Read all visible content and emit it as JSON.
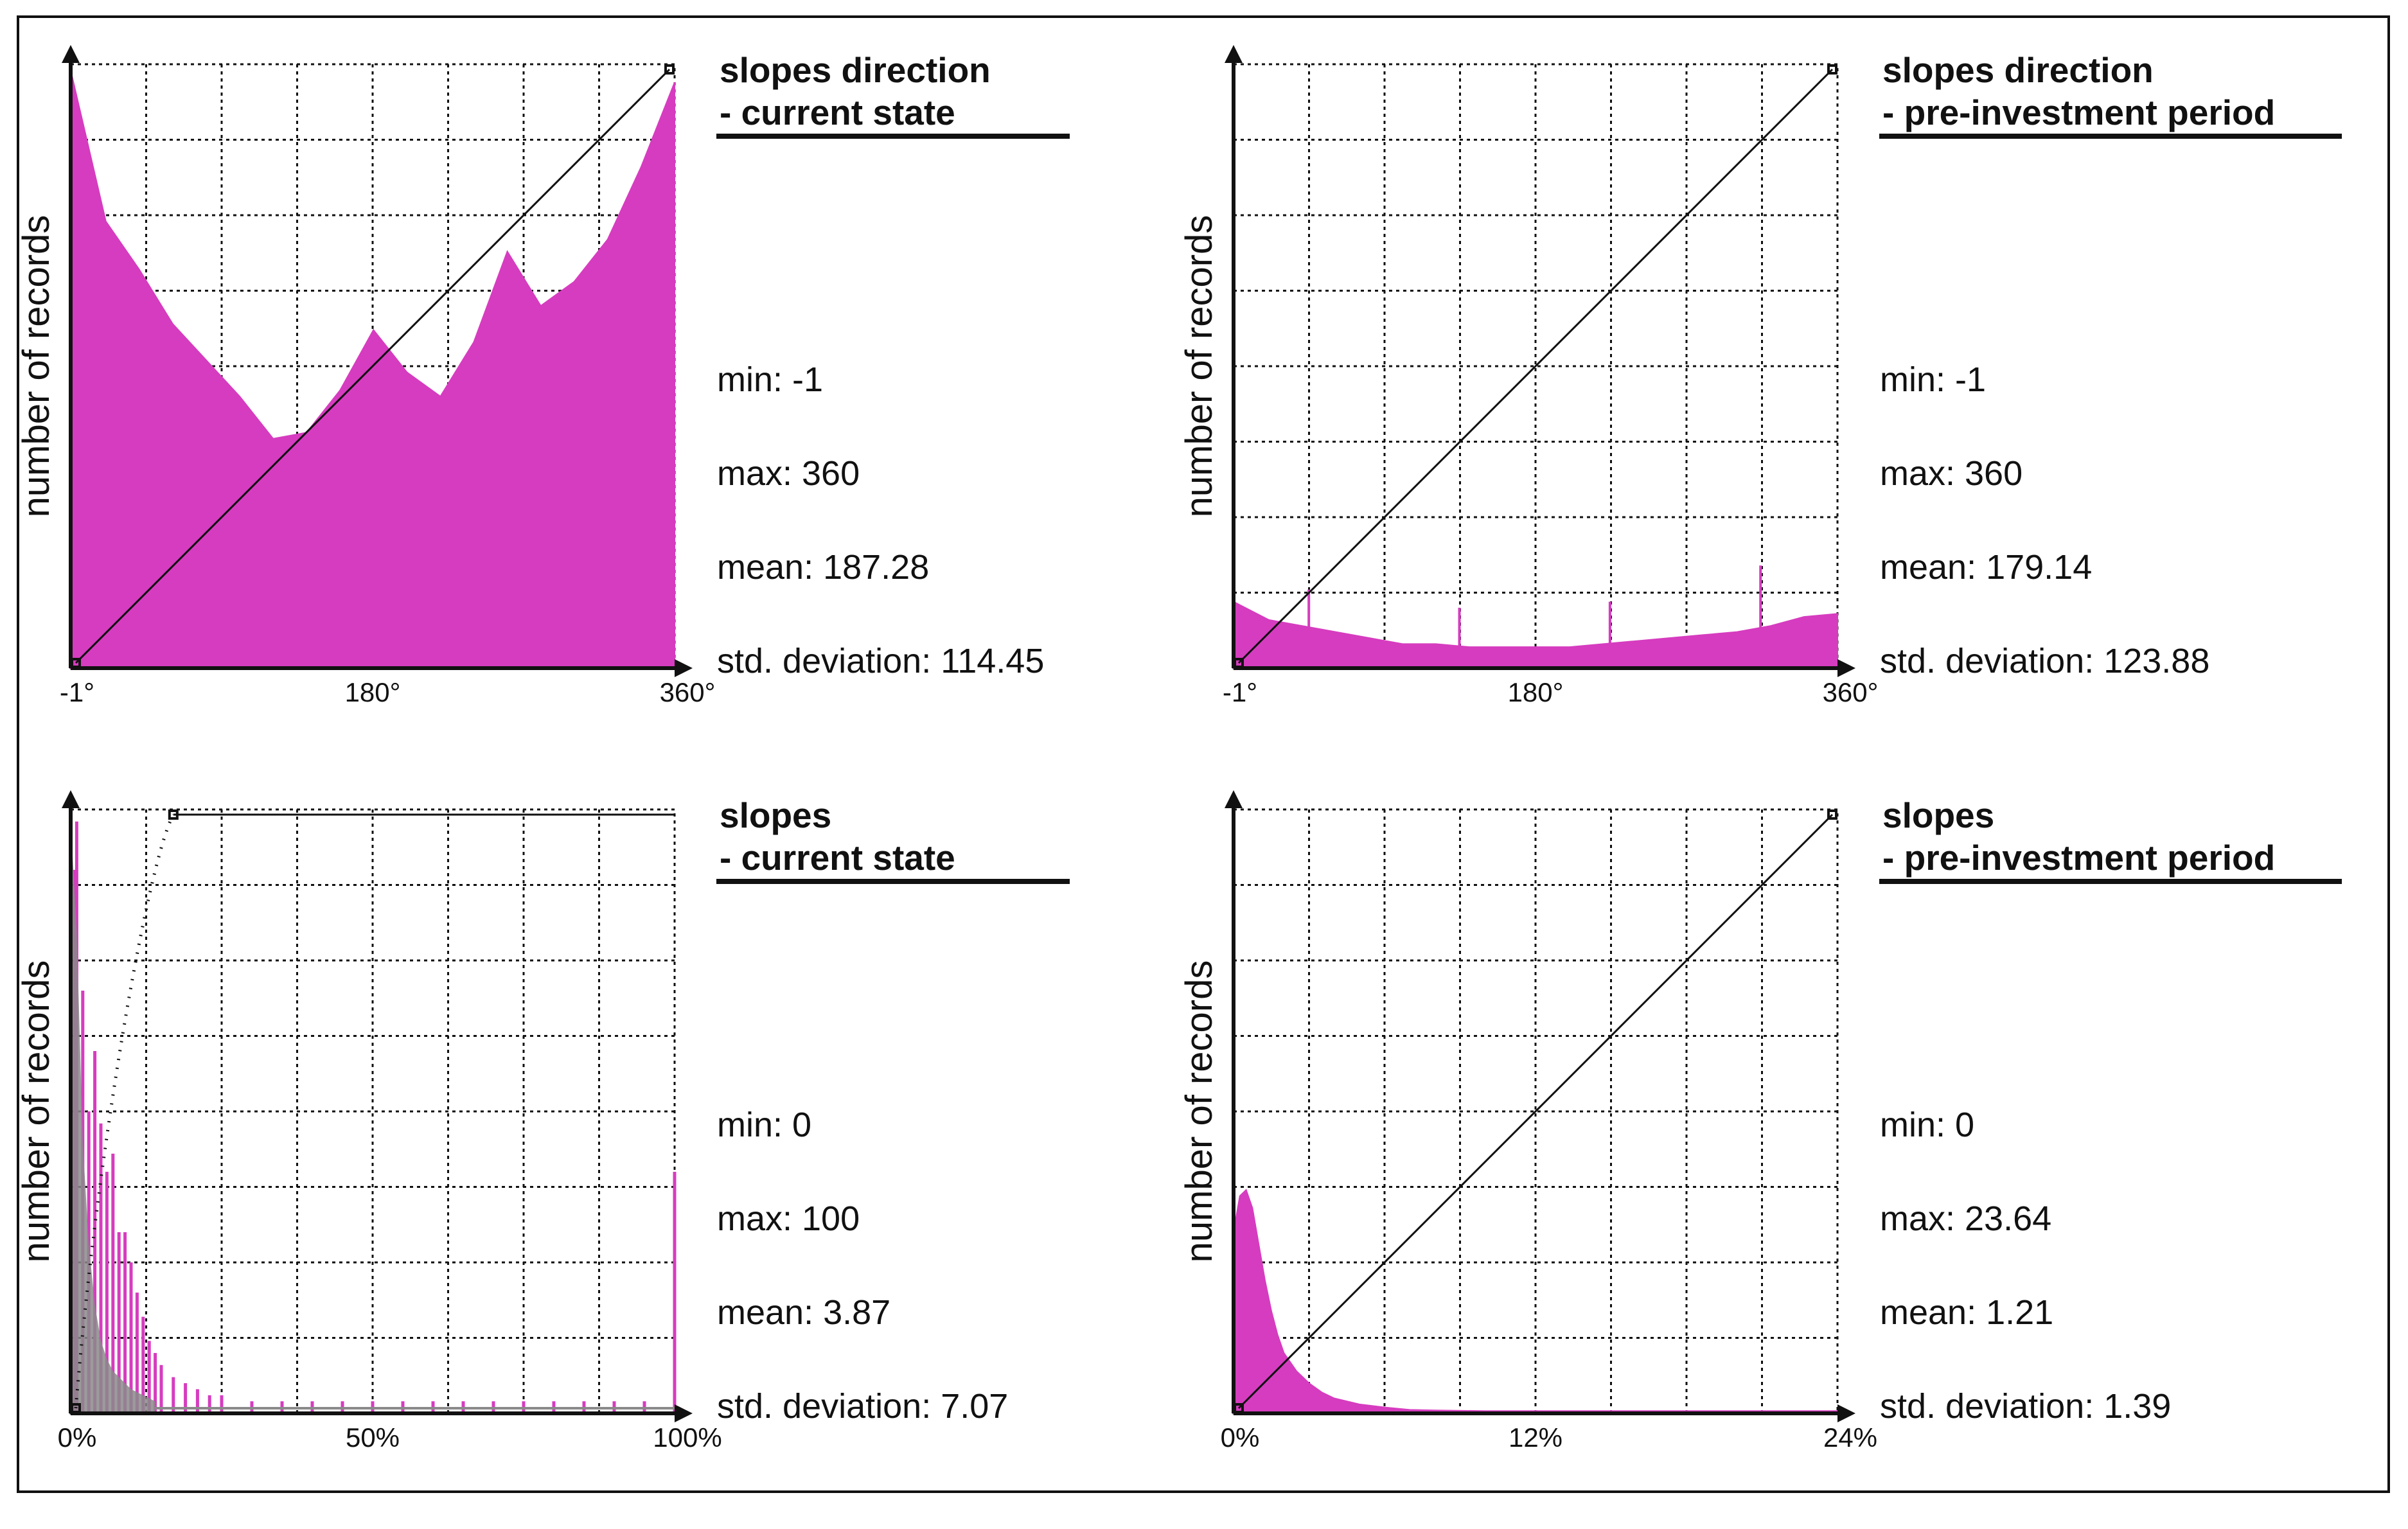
{
  "colors": {
    "histogram": "#d63cbf",
    "secondary": "#8a8a8a",
    "ink": "#111111"
  },
  "chart_data": [
    {
      "type": "histogram",
      "title_line1": "slopes direction",
      "title_line2": "- current state",
      "ylabel": "number of records",
      "x_tick_labels": [
        "-1°",
        "180°",
        "360°"
      ],
      "x_range": [
        -1,
        360
      ],
      "stats": {
        "min": "min: -1",
        "max": "max: 360",
        "mean": "mean: 187.28",
        "std": "std. deviation: 114.45"
      },
      "cumulative": "linear",
      "bins_x": [
        -1,
        20,
        40,
        60,
        80,
        100,
        120,
        140,
        160,
        180,
        200,
        220,
        240,
        260,
        280,
        300,
        320,
        340,
        360
      ],
      "bins_rel_height": [
        0.99,
        0.74,
        0.66,
        0.57,
        0.51,
        0.45,
        0.38,
        0.39,
        0.46,
        0.56,
        0.49,
        0.45,
        0.54,
        0.69,
        0.6,
        0.64,
        0.71,
        0.83,
        0.97
      ]
    },
    {
      "type": "histogram",
      "title_line1": "slopes direction",
      "title_line2": "- pre-investment period",
      "ylabel": "number of records",
      "x_tick_labels": [
        "-1°",
        "180°",
        "360°"
      ],
      "x_range": [
        -1,
        360
      ],
      "stats": {
        "min": "min: -1",
        "max": "max: 360",
        "mean": "mean: 179.14",
        "std": "std. deviation: 123.88"
      },
      "cumulative": "linear",
      "bins_x": [
        -1,
        20,
        40,
        60,
        80,
        100,
        120,
        140,
        160,
        180,
        200,
        220,
        240,
        260,
        280,
        300,
        320,
        340,
        360
      ],
      "bins_rel_height": [
        0.11,
        0.08,
        0.07,
        0.06,
        0.05,
        0.04,
        0.04,
        0.035,
        0.035,
        0.035,
        0.035,
        0.04,
        0.045,
        0.05,
        0.055,
        0.06,
        0.07,
        0.085,
        0.09
      ],
      "spikes_x": [
        44,
        134,
        224,
        314
      ],
      "spikes_rel_height": [
        0.13,
        0.1,
        0.11,
        0.17
      ]
    },
    {
      "type": "histogram",
      "title_line1": "slopes",
      "title_line2": "- current state",
      "ylabel": "number of records",
      "x_tick_labels": [
        "0%",
        "50%",
        "100%"
      ],
      "x_range": [
        0,
        100
      ],
      "stats": {
        "min": "min: 0",
        "max": "max: 100",
        "mean": "mean: 3.87",
        "std": "std. deviation: 7.07"
      },
      "cumulative": "dotted-then-flat",
      "bins_x": [
        0,
        1,
        2,
        3,
        4,
        5,
        6,
        7,
        8,
        9,
        10,
        11,
        12,
        13,
        14,
        15,
        17,
        19,
        21,
        23,
        25,
        30,
        35,
        40,
        45,
        50,
        55,
        60,
        65,
        70,
        75,
        80,
        85,
        90,
        95,
        100
      ],
      "bins_rel_height": [
        0.9,
        0.98,
        0.7,
        0.5,
        0.6,
        0.48,
        0.4,
        0.43,
        0.3,
        0.3,
        0.25,
        0.2,
        0.16,
        0.12,
        0.1,
        0.08,
        0.06,
        0.05,
        0.04,
        0.03,
        0.03,
        0.02,
        0.02,
        0.02,
        0.02,
        0.02,
        0.02,
        0.02,
        0.02,
        0.02,
        0.02,
        0.02,
        0.02,
        0.02,
        0.02,
        0.4
      ],
      "secondary_bins_x": [
        0,
        1,
        2,
        3,
        4,
        5,
        6,
        7,
        8,
        9,
        10,
        12,
        14
      ],
      "secondary_rel_height": [
        0.98,
        0.8,
        0.45,
        0.28,
        0.18,
        0.12,
        0.09,
        0.07,
        0.06,
        0.05,
        0.04,
        0.03,
        0.02
      ]
    },
    {
      "type": "histogram",
      "title_line1": "slopes",
      "title_line2": "- pre-investment period",
      "ylabel": "number of records",
      "x_tick_labels": [
        "0%",
        "12%",
        "24%"
      ],
      "x_range": [
        0,
        24
      ],
      "stats": {
        "min": "min: 0",
        "max": "max: 23.64",
        "mean": "mean: 1.21",
        "std": "std. deviation: 1.39"
      },
      "cumulative": "linear",
      "bins_x": [
        0,
        0.25,
        0.5,
        0.75,
        1,
        1.25,
        1.5,
        1.75,
        2,
        2.5,
        3,
        3.5,
        4,
        5,
        6,
        7,
        8,
        10,
        12,
        16,
        20,
        24
      ],
      "bins_rel_height": [
        0.3,
        0.36,
        0.37,
        0.34,
        0.28,
        0.22,
        0.17,
        0.13,
        0.1,
        0.07,
        0.05,
        0.035,
        0.025,
        0.015,
        0.01,
        0.006,
        0.005,
        0.004,
        0.004,
        0.004,
        0.004,
        0.004
      ]
    }
  ]
}
